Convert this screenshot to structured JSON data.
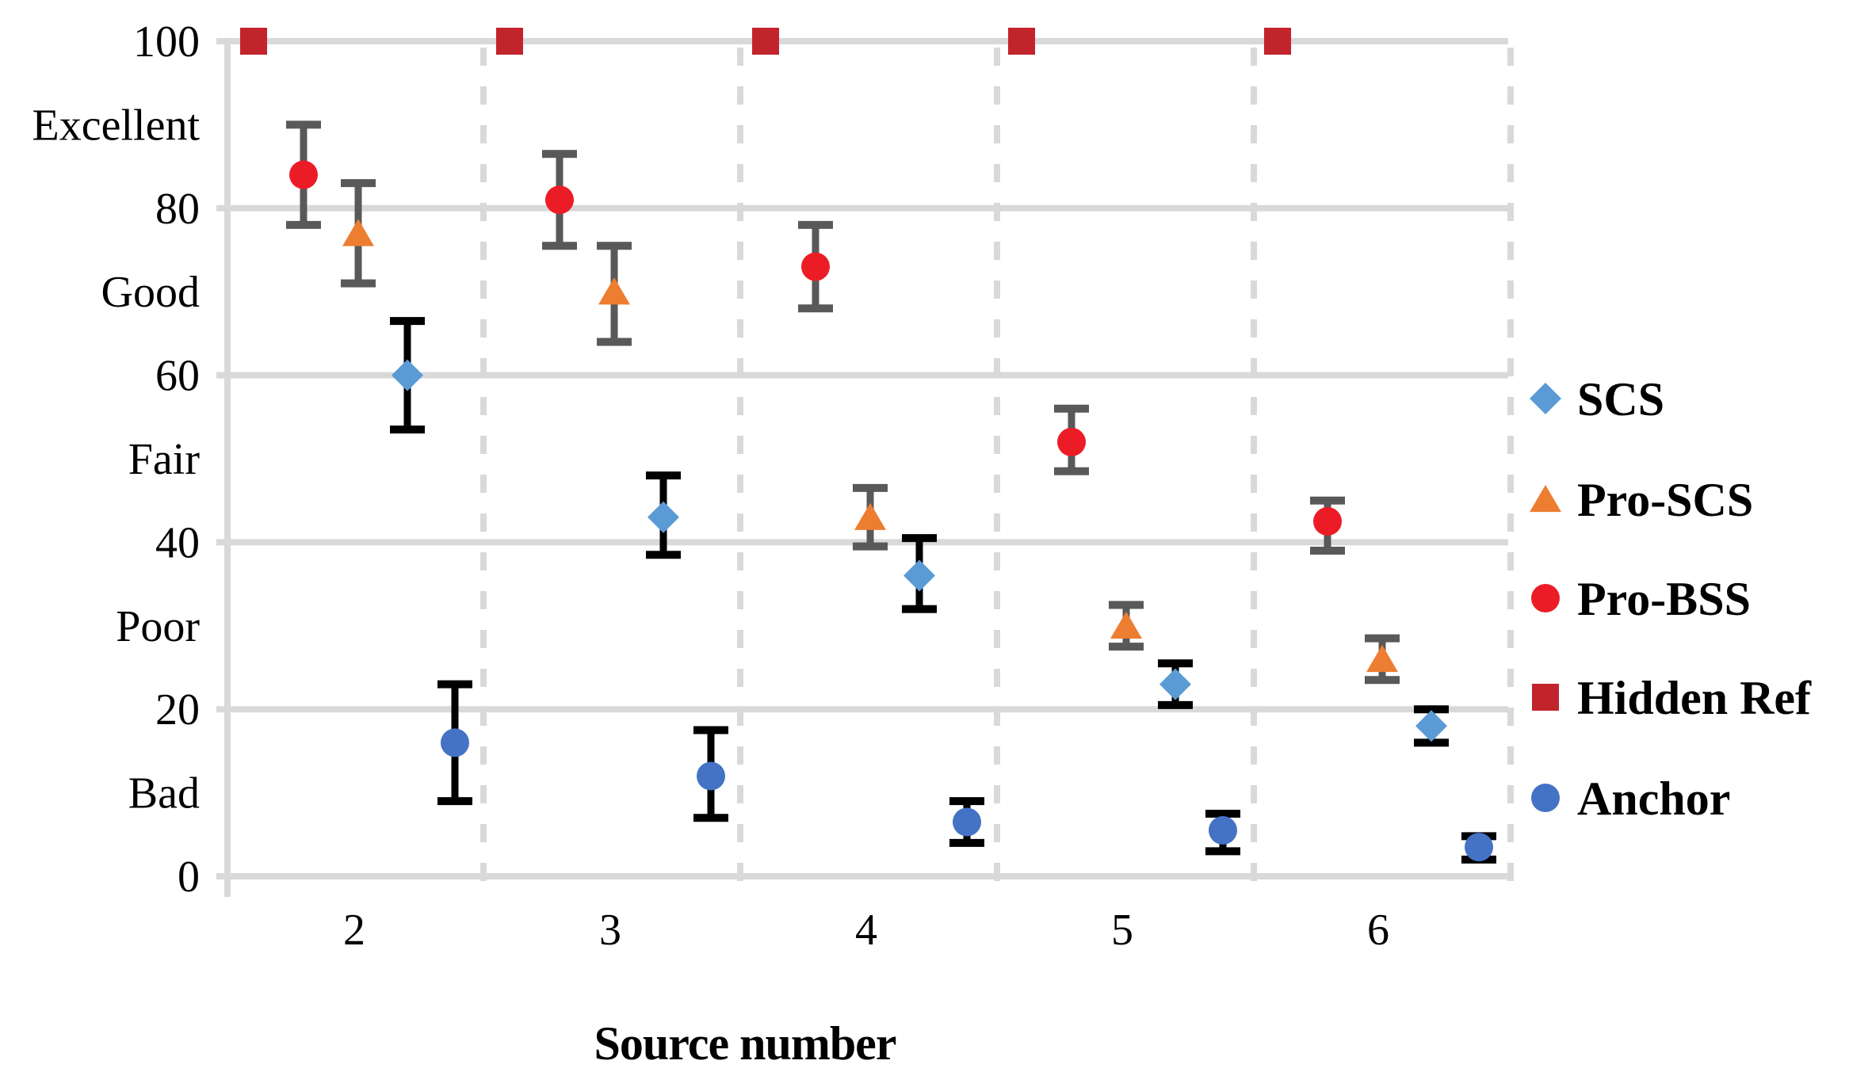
{
  "figure": {
    "background": "#ffffff",
    "x_axis_title": "Source number",
    "x_tick_labels": [
      "2",
      "3",
      "4",
      "5",
      "6"
    ],
    "y_tick_labels": [
      "100",
      "80",
      "60",
      "40",
      "20",
      "0"
    ],
    "y_tick_values": [
      100,
      80,
      60,
      40,
      20,
      0
    ],
    "y_quality_labels": [
      "Excellent",
      "Good",
      "Fair",
      "Poor",
      "Bad"
    ],
    "grid_color": "#d9d9d9",
    "legend": [
      {
        "label": "SCS",
        "marker": "diamond",
        "color": "#5B9BD5"
      },
      {
        "label": "Pro-SCS",
        "marker": "triangle",
        "color": "#ED7D31"
      },
      {
        "label": "Pro-BSS",
        "marker": "circle",
        "color": "#EC1C26"
      },
      {
        "label": "Hidden Ref",
        "marker": "square",
        "color": "#C2242E"
      },
      {
        "label": "Anchor",
        "marker": "circle",
        "color": "#4472C4"
      }
    ]
  },
  "chart_data": {
    "type": "scatter",
    "title": "",
    "xlabel": "Source number",
    "ylabel": "",
    "x_categories": [
      2,
      3,
      4,
      5,
      6
    ],
    "ylim": [
      0,
      100
    ],
    "yticks": [
      0,
      20,
      40,
      60,
      80,
      100
    ],
    "y_quality_bands": [
      "Bad",
      "Poor",
      "Fair",
      "Good",
      "Excellent"
    ],
    "grid": "horizontal solid gridlines, dashed vertical group separators",
    "legend_position": "right",
    "plot_order": [
      "Hidden Ref",
      "Pro-BSS",
      "Pro-SCS",
      "SCS",
      "Anchor"
    ],
    "series": [
      {
        "name": "SCS",
        "marker": "diamond",
        "color": "#5B9BD5",
        "errorbar_color": "#000000",
        "means": [
          60,
          43,
          36,
          23,
          18
        ],
        "ci_low": [
          53.5,
          38.5,
          32,
          20.5,
          16
        ],
        "ci_high": [
          66.5,
          48,
          40.5,
          25.5,
          20
        ]
      },
      {
        "name": "Pro-SCS",
        "marker": "triangle",
        "color": "#ED7D31",
        "errorbar_color": "#595959",
        "means": [
          77,
          70,
          43,
          30,
          26
        ],
        "ci_low": [
          71,
          64,
          39.5,
          27.5,
          23.5
        ],
        "ci_high": [
          83,
          75.5,
          46.5,
          32.5,
          28.5
        ]
      },
      {
        "name": "Pro-BSS",
        "marker": "circle",
        "color": "#EC1C26",
        "errorbar_color": "#595959",
        "means": [
          84,
          81,
          73,
          52,
          42.5
        ],
        "ci_low": [
          78,
          75.5,
          68,
          48.5,
          39
        ],
        "ci_high": [
          90,
          86.5,
          78,
          56,
          45
        ]
      },
      {
        "name": "Hidden Ref",
        "marker": "square",
        "color": "#C2242E",
        "errorbar_color": null,
        "means": [
          100,
          100,
          100,
          100,
          100
        ],
        "ci_low": [
          100,
          100,
          100,
          100,
          100
        ],
        "ci_high": [
          100,
          100,
          100,
          100,
          100
        ]
      },
      {
        "name": "Anchor",
        "marker": "circle",
        "color": "#4472C4",
        "errorbar_color": "#000000",
        "means": [
          16,
          12,
          6.5,
          5.5,
          3.5
        ],
        "ci_low": [
          9,
          7,
          4,
          3,
          2
        ],
        "ci_high": [
          23,
          17.5,
          9,
          7.5,
          4.8
        ]
      }
    ]
  }
}
